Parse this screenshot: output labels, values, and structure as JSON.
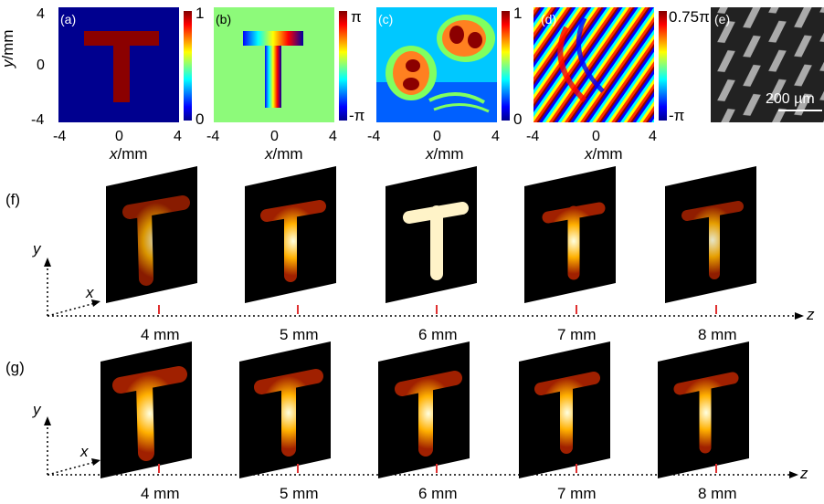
{
  "top_panels": {
    "labels": [
      "(a)",
      "(b)",
      "(c)",
      "(d)",
      "(e)"
    ],
    "axis_ticks": [
      "-4",
      "0",
      "4"
    ],
    "y_ticks": [
      "4",
      "0",
      "-4"
    ],
    "x_axis_label_var": "x",
    "x_axis_label_unit": "/mm",
    "y_axis_label_var": "y",
    "y_axis_label_unit": "/mm",
    "colorbar_a": {
      "max": "1",
      "min": "0"
    },
    "colorbar_b": {
      "max": "π",
      "min": "-π"
    },
    "colorbar_c": {
      "max": "1",
      "min": "0"
    },
    "colorbar_d": {
      "max": "0.75π",
      "min": "-π"
    },
    "sem_scale": "200 µm"
  },
  "rows": [
    {
      "label": "(f)",
      "y_axis": "y",
      "x_axis": "x",
      "z_axis": "z",
      "distances": [
        "4 mm",
        "5 mm",
        "6 mm",
        "7 mm",
        "8 mm"
      ]
    },
    {
      "label": "(g)",
      "y_axis": "y",
      "x_axis": "x",
      "z_axis": "z",
      "distances": [
        "4 mm",
        "5 mm",
        "6 mm",
        "7 mm",
        "8 mm"
      ]
    }
  ],
  "colors": {
    "jet_dark_blue": "#00008f",
    "jet_dark_red": "#8b0000",
    "phase_green": "#8dfa7a",
    "distance_tick": "#e03030"
  }
}
